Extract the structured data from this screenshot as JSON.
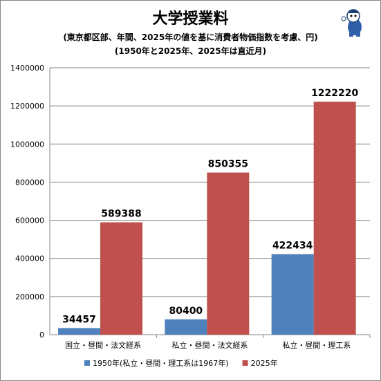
{
  "title": "大学授業料",
  "subtitle_1": "(東京都区部、年間、2025年の値を基に消費者物価指数を考慮、円)",
  "subtitle_2": "(1950年と2025年、2025年は直近月)",
  "chart_data": {
    "type": "bar",
    "categories": [
      "国立・昼間・法文経系",
      "私立・昼間・法文経系",
      "私立・昼間・理工系"
    ],
    "series": [
      {
        "name": "1950年(私立・昼間・理工系は1967年)",
        "values": [
          34457,
          80400,
          422434
        ],
        "color": "#4f81bd"
      },
      {
        "name": "2025年",
        "values": [
          589388,
          850355,
          1222220
        ],
        "color": "#c0504d"
      }
    ],
    "ylim": [
      0,
      1400000
    ],
    "yticks": [
      0,
      200000,
      400000,
      600000,
      800000,
      1000000,
      1200000,
      1400000
    ],
    "grid": true,
    "legend_position": "bottom",
    "data_labels": true
  }
}
